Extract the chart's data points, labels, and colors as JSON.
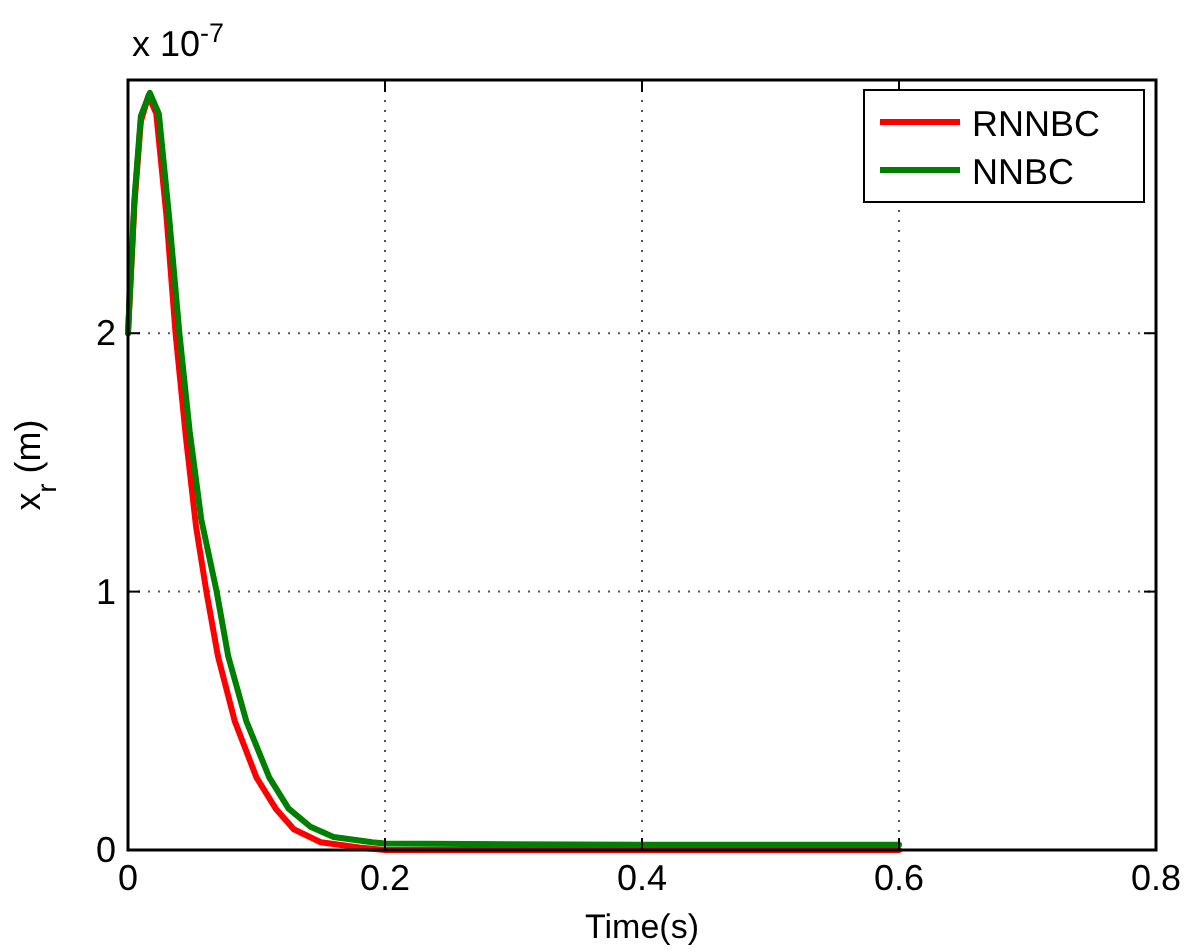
{
  "chart_data": {
    "type": "line",
    "xlabel": "Time(s)",
    "ylabel": "x$_{r}$ (m)",
    "annotations": [
      "x 10$^{-7}$"
    ],
    "xlim": [
      0,
      0.8
    ],
    "xticks": [
      0,
      0.2,
      0.4,
      0.6,
      0.8
    ],
    "ylim": [
      0,
      2.98
    ],
    "yticks": [
      0,
      1,
      2
    ],
    "grid": true,
    "legend": "top right",
    "line_style": "solid",
    "series": [
      {
        "name": "RNNBC",
        "color": "#ff0000",
        "x": [
          0,
          0.005,
          0.01,
          0.016,
          0.022,
          0.03,
          0.037,
          0.045,
          0.053,
          0.061,
          0.07,
          0.083,
          0.1,
          0.115,
          0.129,
          0.15,
          0.18,
          0.2,
          0.4,
          0.6
        ],
        "values": [
          2.0,
          2.5,
          2.82,
          2.92,
          2.85,
          2.45,
          2.0,
          1.6,
          1.25,
          1.0,
          0.75,
          0.5,
          0.28,
          0.16,
          0.08,
          0.03,
          0.01,
          0,
          0,
          0
        ]
      },
      {
        "name": "NNBC",
        "color": "#008000",
        "x": [
          0,
          0.005,
          0.01,
          0.017,
          0.024,
          0.032,
          0.04,
          0.048,
          0.057,
          0.069,
          0.078,
          0.092,
          0.11,
          0.125,
          0.142,
          0.16,
          0.19,
          0.2,
          0.4,
          0.6
        ],
        "values": [
          2.0,
          2.52,
          2.84,
          2.93,
          2.85,
          2.45,
          2.0,
          1.62,
          1.28,
          1.0,
          0.75,
          0.5,
          0.28,
          0.16,
          0.09,
          0.05,
          0.03,
          0.025,
          0.02,
          0.02
        ]
      }
    ]
  }
}
